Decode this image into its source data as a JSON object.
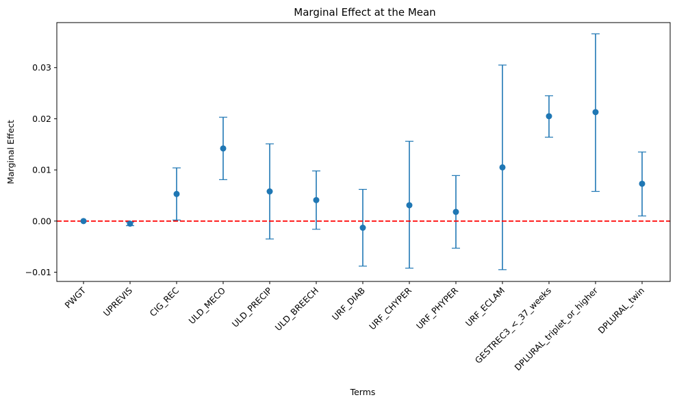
{
  "chart_data": {
    "type": "scatter",
    "title": "Marginal Effect at the Mean",
    "xlabel": "Terms",
    "ylabel": "Marginal Effect",
    "categories": [
      "PWGT",
      "UPREVIS",
      "CIG_REC",
      "ULD_MECO",
      "ULD_PRECIP",
      "ULD_BREECH",
      "URF_DIAB",
      "URF_CHYPER",
      "URF_PHYPER",
      "URF_ECLAM",
      "GESTREC3_<_37_weeks",
      "DPLURAL_triplet_or_higher",
      "DPLURAL_twin"
    ],
    "series": [
      {
        "values": [
          0.0,
          -0.0005,
          0.0053,
          0.0142,
          0.0058,
          0.0041,
          -0.0013,
          0.0031,
          0.0018,
          0.0105,
          0.0205,
          0.0213,
          0.0073
        ],
        "lower": [
          0.0,
          -0.0009,
          0.0002,
          0.0081,
          -0.0035,
          -0.0016,
          -0.0088,
          -0.0092,
          -0.0053,
          -0.0095,
          0.0164,
          0.0058,
          0.001
        ],
        "upper": [
          0.0,
          -0.0002,
          0.0104,
          0.0203,
          0.0151,
          0.0098,
          0.0062,
          0.0156,
          0.0089,
          0.0305,
          0.0245,
          0.0366,
          0.0135
        ]
      }
    ],
    "reference_line": {
      "y": 0.0,
      "style": "dashed",
      "color": "#ff0000"
    },
    "ylim": [
      -0.0118,
      0.0388
    ],
    "yticks": [
      -0.01,
      0.0,
      0.01,
      0.02,
      0.03
    ],
    "ytick_labels": [
      "−0.01",
      "0.00",
      "0.01",
      "0.02",
      "0.03"
    ],
    "colors": {
      "points": "#1f77b4",
      "errorbars": "#1f77b4"
    },
    "grid": false,
    "legend": "none"
  }
}
